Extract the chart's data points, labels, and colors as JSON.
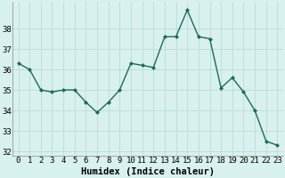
{
  "x": [
    0,
    1,
    2,
    3,
    4,
    5,
    6,
    7,
    8,
    9,
    10,
    11,
    12,
    13,
    14,
    15,
    16,
    17,
    18,
    19,
    20,
    21,
    22,
    23
  ],
  "y": [
    36.3,
    36.0,
    35.0,
    34.9,
    35.0,
    35.0,
    34.4,
    33.9,
    34.4,
    35.0,
    36.3,
    36.2,
    36.1,
    37.6,
    37.6,
    38.9,
    37.6,
    37.5,
    35.1,
    35.6,
    34.9,
    34.0,
    32.5,
    32.3
  ],
  "line_color": "#1a6b5a",
  "marker": "D",
  "marker_size": 2,
  "line_width": 1.0,
  "bg_color": "#d8f0ee",
  "grid_color": "#b8dcd8",
  "xlabel": "Humidex (Indice chaleur)",
  "xlabel_fontsize": 7.5,
  "tick_fontsize": 6.5,
  "yticks": [
    32,
    33,
    34,
    35,
    36,
    37,
    38
  ],
  "ylim": [
    31.8,
    39.3
  ],
  "xlim": [
    -0.5,
    23.5
  ]
}
